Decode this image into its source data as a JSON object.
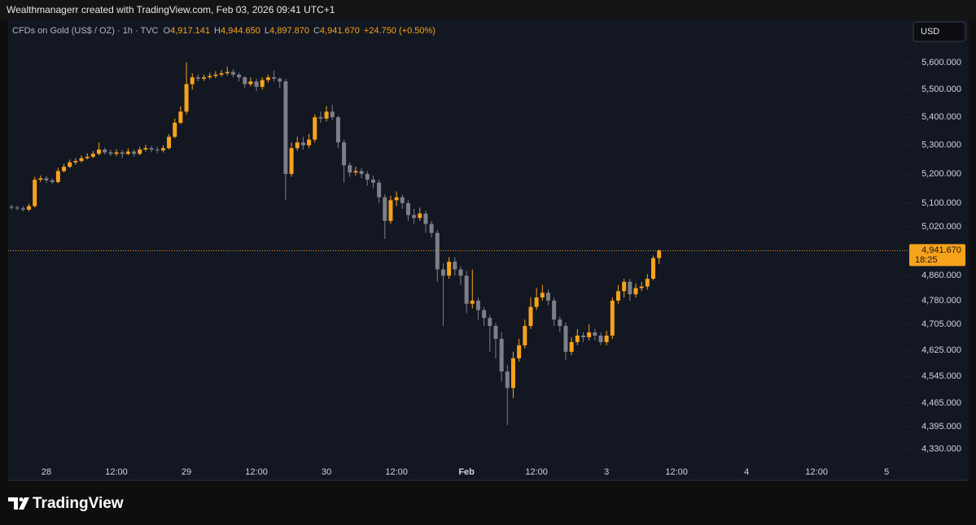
{
  "attribution": "Wealthmanagerr created with TradingView.com, Feb 03, 2026 09:41 UTC+1",
  "footer": {
    "brand": "TradingView"
  },
  "chart_data": {
    "type": "candlestick",
    "symbol": "CFDs on Gold (US$ / OZ) · 1h · TVC",
    "ohlc": [
      {
        "key": "O",
        "value": "4,917.141"
      },
      {
        "key": "H",
        "value": "4,944.650"
      },
      {
        "key": "L",
        "value": "4,897.870"
      },
      {
        "key": "C",
        "value": "4,941.670"
      }
    ],
    "change": "+24.750 (+0.50%)",
    "currency": "USD",
    "last_price_label": "4,941.670",
    "countdown": "18:25",
    "up_color": "#f7a21b",
    "down_color": "#7c7f88",
    "log_scale": true,
    "grid": false,
    "xlim": [
      -6.56,
      146.9
    ],
    "xticks": [
      {
        "value": 0,
        "label": "28"
      },
      {
        "value": 12,
        "label": "12:00"
      },
      {
        "value": 24,
        "label": "29"
      },
      {
        "value": 36,
        "label": "12:00"
      },
      {
        "value": 48,
        "label": "30"
      },
      {
        "value": 60,
        "label": "12:00"
      },
      {
        "value": 72,
        "label": "Feb"
      },
      {
        "value": 84,
        "label": "12:00"
      },
      {
        "value": 96,
        "label": "3"
      },
      {
        "value": 108,
        "label": "12:00"
      },
      {
        "value": 120,
        "label": "4"
      },
      {
        "value": 132,
        "label": "12:00"
      },
      {
        "value": 144,
        "label": "5"
      }
    ],
    "ylim": [
      4290,
      5682
    ],
    "yticks": [
      {
        "value": 5600,
        "label": "5,600.000"
      },
      {
        "value": 5500,
        "label": "5,500.000"
      },
      {
        "value": 5400,
        "label": "5,400.000"
      },
      {
        "value": 5300,
        "label": "5,300.000"
      },
      {
        "value": 5200,
        "label": "5,200.000"
      },
      {
        "value": 5100,
        "label": "5,100.000"
      },
      {
        "value": 5020,
        "label": "5,020.000"
      },
      {
        "value": 4860,
        "label": "4,860.000"
      },
      {
        "value": 4780,
        "label": "4,780.000"
      },
      {
        "value": 4705,
        "label": "4,705.000"
      },
      {
        "value": 4625,
        "label": "4,625.000"
      },
      {
        "value": 4545,
        "label": "4,545.000"
      },
      {
        "value": 4465,
        "label": "4,465.000"
      },
      {
        "value": 4395,
        "label": "4,395.000"
      },
      {
        "value": 4330,
        "label": "4,330.000"
      }
    ],
    "x": [
      -6,
      -5,
      -4,
      -3,
      -2,
      -1,
      0,
      1,
      2,
      3,
      4,
      5,
      6,
      7,
      8,
      9,
      10,
      11,
      12,
      13,
      14,
      15,
      16,
      17,
      18,
      19,
      20,
      21,
      22,
      23,
      24,
      25,
      26,
      27,
      28,
      29,
      30,
      31,
      32,
      33,
      34,
      35,
      36,
      37,
      38,
      39,
      40,
      41,
      42,
      43,
      44,
      45,
      46,
      47,
      48,
      49,
      50,
      51,
      52,
      53,
      54,
      55,
      56,
      57,
      58,
      59,
      60,
      61,
      62,
      63,
      64,
      65,
      66,
      67,
      68,
      69,
      70,
      71,
      72,
      73,
      74,
      75,
      76,
      77,
      78,
      79,
      80,
      81,
      82,
      83,
      84,
      85,
      86,
      87,
      88,
      89,
      90,
      91,
      92,
      93,
      94,
      95,
      96,
      97,
      98,
      99,
      100,
      101,
      102,
      103,
      104,
      105
    ],
    "open": [
      5088,
      5085,
      5082,
      5078,
      5090,
      5180,
      5185,
      5178,
      5172,
      5210,
      5225,
      5240,
      5245,
      5255,
      5260,
      5270,
      5285,
      5275,
      5270,
      5275,
      5270,
      5278,
      5270,
      5285,
      5290,
      5285,
      5282,
      5290,
      5330,
      5380,
      5420,
      5520,
      5545,
      5540,
      5545,
      5550,
      5555,
      5560,
      5565,
      5555,
      5545,
      5520,
      5530,
      5510,
      5535,
      5545,
      5540,
      5530,
      5200,
      5290,
      5310,
      5300,
      5320,
      5400,
      5395,
      5420,
      5400,
      5310,
      5230,
      5205,
      5210,
      5200,
      5180,
      5170,
      5120,
      5040,
      5110,
      5120,
      5100,
      5060,
      5050,
      5065,
      5030,
      5000,
      4880,
      4860,
      4905,
      4880,
      4860,
      4770,
      4780,
      4750,
      4725,
      4700,
      4660,
      4560,
      4510,
      4600,
      4640,
      4700,
      4760,
      4790,
      4805,
      4780,
      4720,
      4700,
      4620,
      4650,
      4670,
      4665,
      4680,
      4670,
      4650,
      4670,
      4780,
      4810,
      4840,
      4800,
      4820,
      4825,
      4850,
      4917.141
    ],
    "high": [
      5095,
      5092,
      5090,
      5098,
      5190,
      5195,
      5192,
      5185,
      5222,
      5235,
      5250,
      5255,
      5265,
      5272,
      5280,
      5310,
      5292,
      5285,
      5286,
      5284,
      5290,
      5285,
      5295,
      5302,
      5298,
      5295,
      5300,
      5340,
      5395,
      5440,
      5600,
      5560,
      5555,
      5555,
      5562,
      5568,
      5572,
      5585,
      5575,
      5562,
      5550,
      5545,
      5540,
      5545,
      5555,
      5570,
      5545,
      5540,
      5310,
      5330,
      5330,
      5340,
      5410,
      5420,
      5440,
      5445,
      5405,
      5320,
      5240,
      5225,
      5220,
      5210,
      5195,
      5180,
      5130,
      5125,
      5140,
      5130,
      5110,
      5080,
      5085,
      5075,
      5040,
      5010,
      4900,
      4920,
      4920,
      4890,
      4875,
      4880,
      4790,
      4760,
      4735,
      4710,
      4680,
      4580,
      4620,
      4660,
      4720,
      4790,
      4820,
      4830,
      4815,
      4790,
      4730,
      4710,
      4665,
      4690,
      4680,
      4705,
      4690,
      4680,
      4685,
      4790,
      4830,
      4850,
      4850,
      4835,
      4840,
      4865,
      4925,
      4944.65
    ],
    "low": [
      5078,
      5075,
      5072,
      5072,
      5085,
      5172,
      5168,
      5165,
      5168,
      5205,
      5220,
      5232,
      5240,
      5250,
      5255,
      5265,
      5268,
      5262,
      5262,
      5255,
      5265,
      5260,
      5265,
      5278,
      5275,
      5272,
      5275,
      5285,
      5325,
      5375,
      5410,
      5500,
      5530,
      5532,
      5538,
      5542,
      5548,
      5552,
      5545,
      5530,
      5505,
      5512,
      5495,
      5500,
      5525,
      5530,
      5505,
      5110,
      5190,
      5280,
      5285,
      5290,
      5310,
      5380,
      5385,
      5390,
      5290,
      5170,
      5190,
      5195,
      5185,
      5160,
      5150,
      5100,
      4980,
      5030,
      5090,
      5080,
      5040,
      5030,
      5040,
      5000,
      4985,
      4840,
      4700,
      4850,
      4860,
      4830,
      4740,
      4755,
      4720,
      4700,
      4620,
      4600,
      4530,
      4400,
      4480,
      4590,
      4630,
      4690,
      4750,
      4780,
      4765,
      4700,
      4680,
      4595,
      4610,
      4640,
      4650,
      4655,
      4655,
      4640,
      4640,
      4660,
      4770,
      4790,
      4780,
      4790,
      4810,
      4815,
      4845,
      4897.87
    ],
    "close": [
      5085,
      5082,
      5078,
      5090,
      5180,
      5185,
      5178,
      5172,
      5210,
      5225,
      5240,
      5245,
      5255,
      5260,
      5270,
      5285,
      5275,
      5270,
      5275,
      5270,
      5278,
      5270,
      5285,
      5290,
      5285,
      5282,
      5290,
      5330,
      5380,
      5420,
      5520,
      5545,
      5540,
      5545,
      5550,
      5555,
      5560,
      5565,
      5555,
      5545,
      5520,
      5530,
      5510,
      5535,
      5545,
      5540,
      5530,
      5200,
      5290,
      5310,
      5300,
      5320,
      5400,
      5395,
      5420,
      5400,
      5310,
      5230,
      5205,
      5210,
      5200,
      5180,
      5170,
      5120,
      5040,
      5110,
      5120,
      5100,
      5060,
      5050,
      5065,
      5030,
      5000,
      4880,
      4860,
      4905,
      4880,
      4860,
      4770,
      4780,
      4750,
      4725,
      4700,
      4660,
      4560,
      4510,
      4600,
      4640,
      4700,
      4760,
      4790,
      4805,
      4780,
      4720,
      4700,
      4620,
      4650,
      4670,
      4665,
      4680,
      4670,
      4650,
      4670,
      4780,
      4810,
      4840,
      4800,
      4820,
      4825,
      4850,
      4916.92,
      4941.67
    ]
  }
}
